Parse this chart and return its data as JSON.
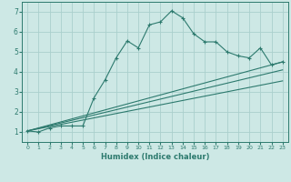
{
  "xlabel": "Humidex (Indice chaleur)",
  "xlim": [
    -0.5,
    23.5
  ],
  "ylim": [
    0.5,
    7.5
  ],
  "yticks": [
    1,
    2,
    3,
    4,
    5,
    6,
    7
  ],
  "xticks": [
    0,
    1,
    2,
    3,
    4,
    5,
    6,
    7,
    8,
    9,
    10,
    11,
    12,
    13,
    14,
    15,
    16,
    17,
    18,
    19,
    20,
    21,
    22,
    23
  ],
  "background_color": "#cde8e5",
  "grid_color": "#aacfcc",
  "line_color": "#2d7a6e",
  "series0_x": [
    0,
    1,
    2,
    3,
    4,
    5,
    6,
    7,
    8,
    9,
    10,
    11,
    12,
    13,
    14,
    15,
    16,
    17,
    18,
    19,
    20,
    21,
    22,
    23
  ],
  "series0_y": [
    1.05,
    1.0,
    1.2,
    1.3,
    1.3,
    1.3,
    2.7,
    3.6,
    4.7,
    5.55,
    5.2,
    6.35,
    6.5,
    7.05,
    6.7,
    5.9,
    5.5,
    5.5,
    5.0,
    4.8,
    4.7,
    5.2,
    4.35,
    4.5
  ],
  "line1_x": [
    0,
    23
  ],
  "line1_y": [
    1.05,
    4.5
  ],
  "line2_x": [
    0,
    23
  ],
  "line2_y": [
    1.05,
    4.1
  ],
  "line3_x": [
    0,
    23
  ],
  "line3_y": [
    1.05,
    3.55
  ]
}
